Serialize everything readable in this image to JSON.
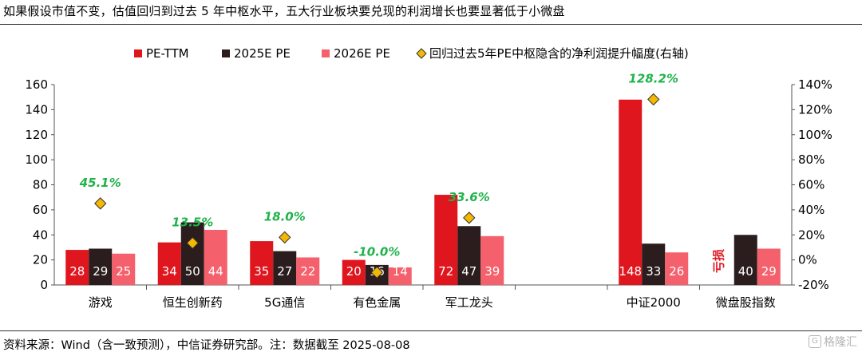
{
  "title": "如果假设市值不变，估值回归到过去 5 年中枢水平，五大行业板块要兑现的利润增长也要显著低于小微盘",
  "footer": "资料来源：Wind（含一致预测），中信证券研究部。注：数据截至 2025-08-08",
  "watermark": "格隆汇",
  "watermark_icon": "G",
  "chart_data": {
    "type": "bar",
    "categories": [
      "游戏",
      "恒生创新药",
      "5G通信",
      "有色金属",
      "军工龙头",
      "",
      "中证2000",
      "微盘股指数"
    ],
    "series": [
      {
        "name": "PE-TTM",
        "color": "#e0161f",
        "values": [
          28,
          34,
          35,
          20,
          72,
          null,
          148,
          null
        ]
      },
      {
        "name": "2025E PE",
        "color": "#2b1d1d",
        "values": [
          29,
          50,
          27,
          16,
          47,
          null,
          33,
          40
        ]
      },
      {
        "name": "2026E PE",
        "color": "#f4606c",
        "values": [
          25,
          44,
          22,
          14,
          39,
          null,
          26,
          29
        ]
      }
    ],
    "line_series": {
      "name": "回归过去5年PE中枢隐含的净利润提升幅度(右轴)",
      "marker_color": "#f5b800",
      "values": [
        45.1,
        13.5,
        18.0,
        -10.0,
        33.6,
        null,
        128.2,
        null
      ],
      "labels": [
        "45.1%",
        "13.5%",
        "18.0%",
        "-10.0%",
        "33.6%",
        "",
        "128.2%",
        ""
      ],
      "label_color": "#1fb34a"
    },
    "y_left": {
      "min": 0,
      "max": 160,
      "ticks": [
        0,
        20,
        40,
        60,
        80,
        100,
        120,
        140,
        160
      ]
    },
    "y_right": {
      "min": -20,
      "max": 140,
      "ticks": [
        -20,
        0,
        20,
        40,
        60,
        80,
        100,
        120,
        140
      ],
      "tick_labels": [
        "-20%",
        "0%",
        "20%",
        "40%",
        "60%",
        "80%",
        "100%",
        "120%",
        "140%"
      ]
    },
    "annotation": {
      "text": "亏损",
      "category": "微盘股指数",
      "color": "#e0161f"
    },
    "legend_position": "top",
    "grid": false
  }
}
